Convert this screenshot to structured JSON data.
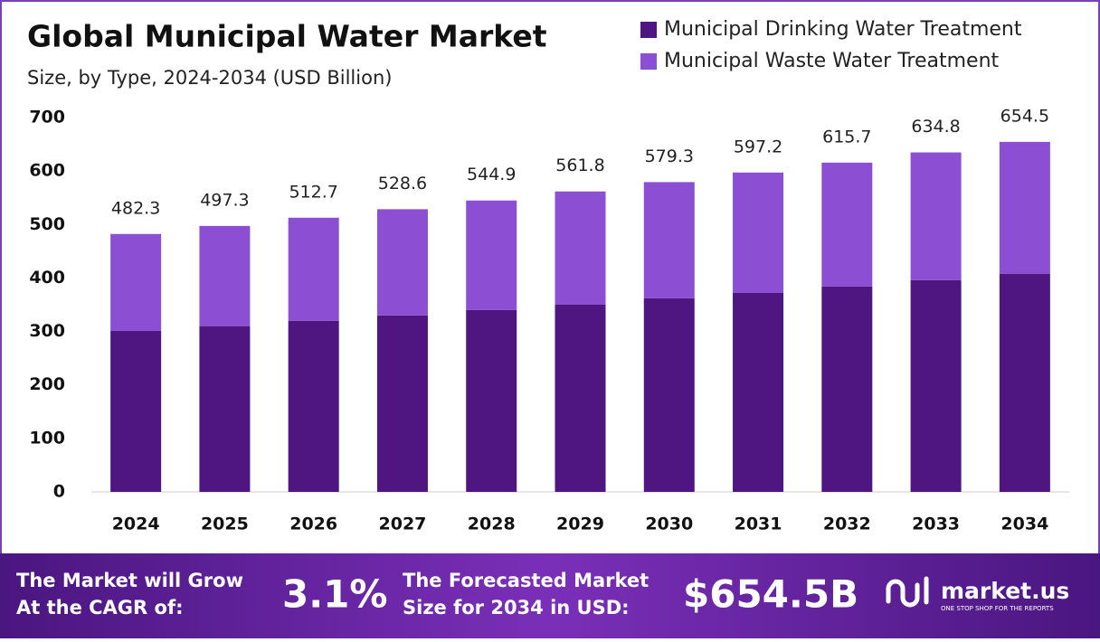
{
  "chart_data": {
    "type": "stacked_bar",
    "title": "Global Municipal Water Market",
    "subtitle": "Size, by Type, 2024-2034 (USD Billion)",
    "categories": [
      "2024",
      "2025",
      "2026",
      "2027",
      "2028",
      "2029",
      "2030",
      "2031",
      "2032",
      "2033",
      "2034"
    ],
    "series": [
      {
        "name": "Municipal Drinking Water Treatment",
        "color": "#4f1581",
        "values": [
          301,
          310,
          320,
          330,
          340,
          350,
          362,
          372,
          384,
          396,
          408
        ]
      },
      {
        "name": "Municipal Waste Water Treatment",
        "color": "#8c4fd3",
        "values": [
          181.3,
          187.3,
          192.7,
          198.6,
          204.9,
          211.8,
          217.3,
          225.2,
          231.7,
          238.8,
          246.5
        ]
      }
    ],
    "totals": [
      482.3,
      497.3,
      512.7,
      528.6,
      544.9,
      561.8,
      579.3,
      597.2,
      615.7,
      634.8,
      654.5
    ],
    "ylim": [
      0,
      700
    ],
    "yticks": [
      0,
      100,
      200,
      300,
      400,
      500,
      600,
      700
    ],
    "grid": false
  },
  "footer": {
    "cagr_text": [
      "The Market will Grow",
      "At the CAGR of:"
    ],
    "cagr_value": "3.1%",
    "forecast_text": [
      "The Forecasted Market",
      "Size for 2034 in USD:"
    ],
    "forecast_value": "$654.5B",
    "brand": "market.us",
    "tagline": "ONE STOP SHOP FOR THE REPORTS"
  }
}
